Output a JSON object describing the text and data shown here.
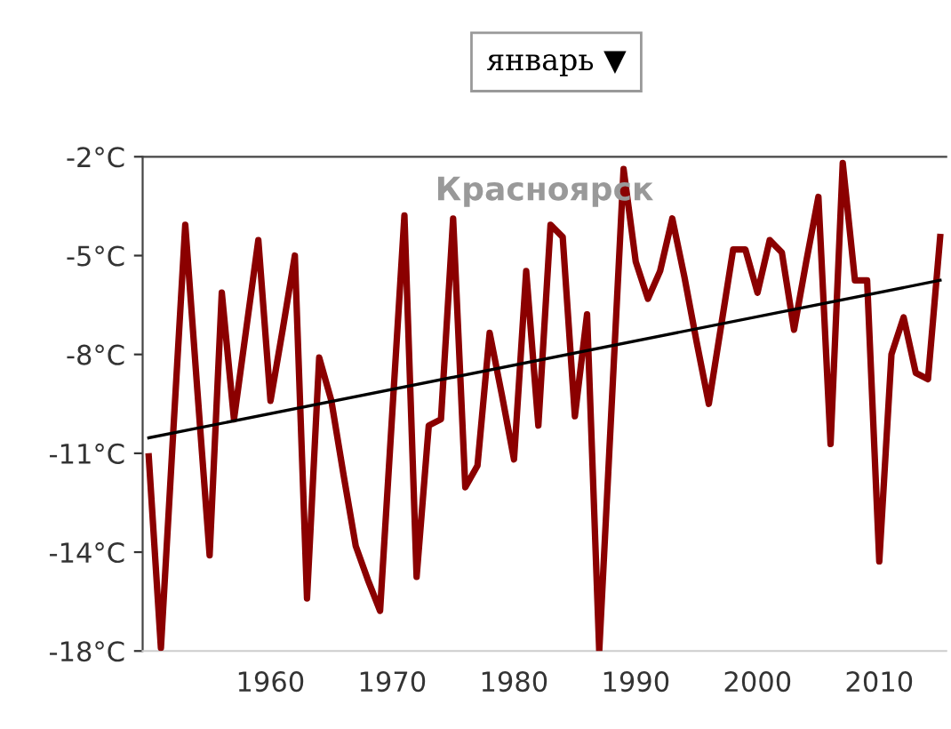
{
  "chart_data": {
    "type": "line",
    "title": "Красноярск",
    "subtitle": "январь ▼",
    "x": [
      1950,
      1951,
      1952,
      1953,
      1954,
      1955,
      1956,
      1957,
      1958,
      1959,
      1960,
      1961,
      1962,
      1963,
      1964,
      1965,
      1966,
      1967,
      1968,
      1969,
      1970,
      1971,
      1972,
      1973,
      1974,
      1975,
      1976,
      1977,
      1978,
      1979,
      1980,
      1981,
      1982,
      1983,
      1984,
      1985,
      1986,
      1987,
      1988,
      1989,
      1990,
      1991,
      1992,
      1993,
      1994,
      1995,
      1996,
      1997,
      1998,
      1999,
      2000,
      2001,
      2002,
      2003,
      2004,
      2005,
      2006,
      2007,
      2008,
      2009,
      2010,
      2011,
      2012,
      2013,
      2014,
      2015
    ],
    "series": [
      {
        "color": "#8b0000",
        "values": [
          -11.3,
          -17.5,
          -10.6,
          -3.8,
          -9.2,
          -14.5,
          -6.0,
          -10.1,
          -7.2,
          -4.3,
          -9.5,
          -7.2,
          -4.8,
          -15.9,
          -8.1,
          -9.5,
          -11.9,
          -14.2,
          -15.3,
          -16.3,
          -9.9,
          -3.5,
          -15.2,
          -10.3,
          -10.1,
          -3.6,
          -12.3,
          -11.6,
          -7.3,
          -9.3,
          -11.4,
          -5.3,
          -10.3,
          -3.8,
          -4.2,
          -10.0,
          -6.7,
          -17.6,
          -9.8,
          -2.0,
          -5.0,
          -6.2,
          -5.3,
          -3.6,
          -5.5,
          -7.6,
          -9.6,
          -7.1,
          -4.6,
          -4.6,
          -6.0,
          -4.3,
          -4.7,
          -7.2,
          -5.0,
          -2.9,
          -10.9,
          -1.8,
          -5.6,
          -5.6,
          -14.7,
          -8.0,
          -6.8,
          -8.6,
          -8.8,
          -4.2
        ]
      },
      {
        "type": "line",
        "color": "#000000",
        "x": [
          1950,
          2015
        ],
        "values": [
          -10.7,
          -5.6
        ]
      }
    ],
    "xlim": [
      1949.5,
      2015.5
    ],
    "xticks": [
      1960,
      1970,
      1980,
      1990,
      2000,
      2010
    ],
    "ylim": [
      -17.6,
      -1.6
    ],
    "yticks": [
      {
        "value": -1.6,
        "label": "-2°C"
      },
      {
        "value": -4.8,
        "label": "-5°C"
      },
      {
        "value": -8.0,
        "label": "-8°C"
      },
      {
        "value": -11.2,
        "label": "-11°C"
      },
      {
        "value": -14.4,
        "label": "-14°C"
      },
      {
        "value": -17.6,
        "label": "-18°C"
      }
    ],
    "grid": false,
    "legend": false,
    "marker": "none",
    "line_style": "solid"
  }
}
